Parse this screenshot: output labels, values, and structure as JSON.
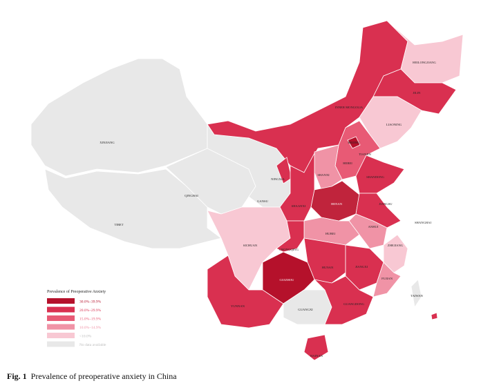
{
  "map": {
    "regions": [
      "XINJIANG",
      "TIBET",
      "QINGHAI",
      "GANSU",
      "INNER MONGOLIA",
      "HEILONGJIANG",
      "JILIN",
      "LIAONING",
      "BEIJING",
      "TIANJIN",
      "HEBEI",
      "SHANXI",
      "SHANDONG",
      "NINGXIA",
      "SHAANXI",
      "HENAN",
      "JIANGSU",
      "SHANGHAI",
      "ANHUI",
      "HUBEI",
      "SICHUAN",
      "CHONGQING",
      "ZHEJIANG",
      "HUNAN",
      "JIANGXI",
      "FUJIAN",
      "GUIZHOU",
      "YUNNAN",
      "GUANGXI",
      "GUANGDONG",
      "HAINAN",
      "TAIWAN"
    ],
    "legend": {
      "title": "Prevalence of Preoperative Anxiety",
      "items": [
        {
          "label": "30.0%–39.9%",
          "color": "#b5112b"
        },
        {
          "label": "20.0%–29.9%",
          "color": "#d93050"
        },
        {
          "label": "15.0%–19.9%",
          "color": "#e85a75"
        },
        {
          "label": "10.0%–14.9%",
          "color": "#f093a6"
        },
        {
          "label": "<10.0%",
          "color": "#f8c8d3"
        },
        {
          "label": "No data available",
          "color": "#e8e8e8"
        }
      ]
    }
  },
  "caption": {
    "number": "Fig. 1",
    "text": "Prevalence of preoperative anxiety in China"
  }
}
